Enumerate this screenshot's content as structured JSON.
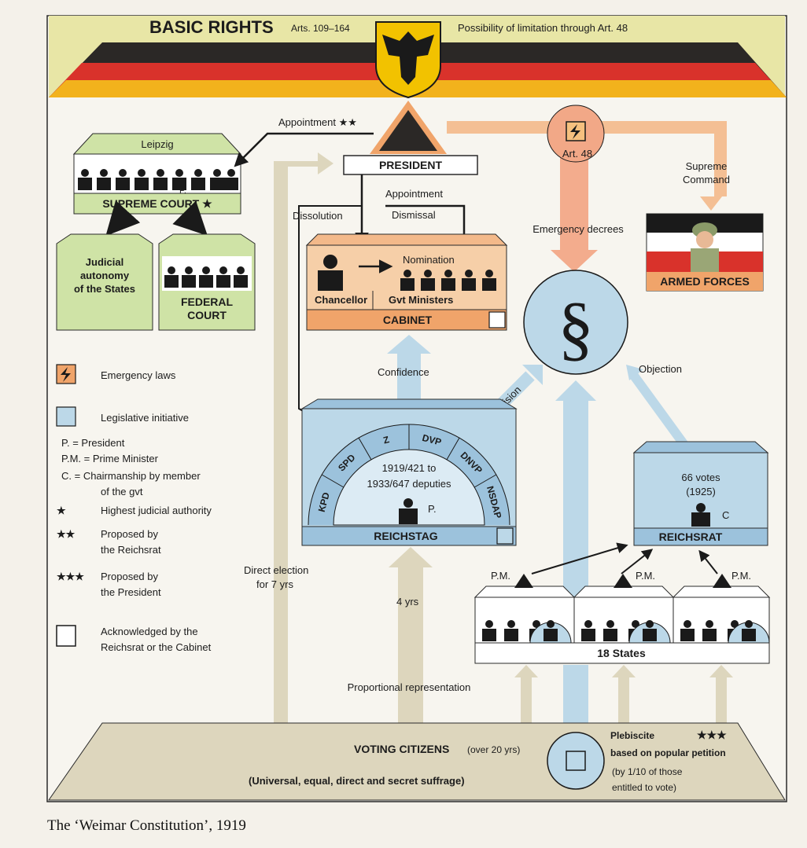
{
  "header": {
    "title": "BASIC RIGHTS",
    "articles": "Arts. 109–164",
    "limitation": "Possibility of limitation through Art. 48"
  },
  "president": {
    "label": "PRESIDENT",
    "appointment_court": "Appointment ★★",
    "appointment_cabinet": "Appointment",
    "dissolution": "Dissolution",
    "dismissal": "Dismissal",
    "direct_election_1": "Direct election",
    "direct_election_2": "for 7 yrs"
  },
  "art48": {
    "label": "Art. 48",
    "supreme_command_1": "Supreme",
    "supreme_command_2": "Command",
    "emergency_decrees": "Emergency decrees"
  },
  "supreme_court": {
    "city": "Leipzig",
    "label": "SUPREME COURT ★",
    "p": "P."
  },
  "judicial_autonomy": [
    "Judicial",
    "autonomy",
    "of the States"
  ],
  "federal_court": [
    "FEDERAL",
    "COURT"
  ],
  "armed_forces": {
    "label": "ARMED FORCES"
  },
  "cabinet": {
    "label": "CABINET",
    "nomination": "Nomination",
    "chancellor": "Chancellor",
    "ministers": "Gvt Ministers",
    "confidence": "Confidence"
  },
  "law_symbol": "§",
  "objection": "Objection",
  "reichstag": {
    "label": "REICHSTAG",
    "parties": [
      "KPD",
      "SPD",
      "Z",
      "DVP",
      "DNVP",
      "NSDAP"
    ],
    "deputies_1": "1919/421 to",
    "deputies_2": "1933/647 deputies",
    "p": "P.",
    "decision": "Decision",
    "years": "4 yrs"
  },
  "reichsrat": {
    "label": "REICHSRAT",
    "votes_1": "66 votes",
    "votes_2": "(1925)",
    "c": "C"
  },
  "states": {
    "label": "18 States",
    "pm": "P.M."
  },
  "citizens": {
    "label": "VOTING CITIZENS",
    "age": "(over 20 yrs)",
    "suffrage": "(Universal, equal, direct and secret suffrage)",
    "proportional": "Proportional representation"
  },
  "plebiscite": {
    "lines": [
      "Plebiscite",
      "based on popular petition",
      "(by 1/10 of those",
      "entitled to vote)"
    ],
    "stars": "★★★"
  },
  "legend": [
    {
      "sym": "",
      "text": "Emergency laws"
    },
    {
      "sym": "",
      "text": "Legislative initiative"
    },
    {
      "sym": "",
      "text": "P. = President"
    },
    {
      "sym": "",
      "text": "P.M. = Prime Minister"
    },
    {
      "sym": "",
      "text": "C. = Chairmanship by member"
    },
    {
      "sym": "",
      "text": "of the gvt"
    },
    {
      "sym": "★",
      "text": "Highest judicial authority"
    },
    {
      "sym": "★★",
      "text": "Proposed by"
    },
    {
      "sym": "",
      "text": "the Reichsrat"
    },
    {
      "sym": "★★★",
      "text": "Proposed by"
    },
    {
      "sym": "",
      "text": "the President"
    },
    {
      "sym": "",
      "text": "Acknowledged by the"
    },
    {
      "sym": "",
      "text": "Reichsrat or the Cabinet"
    }
  ],
  "caption": "The ‘Weimar Constitution’, 1919",
  "colors": {
    "black": "#1a1a1a",
    "red": "#d9322b",
    "gold": "#f2b21c",
    "blue": "#bcd8e8",
    "green": "#cfe3a6",
    "orange": "#f0a46a",
    "beige": "#ddd6bd"
  }
}
